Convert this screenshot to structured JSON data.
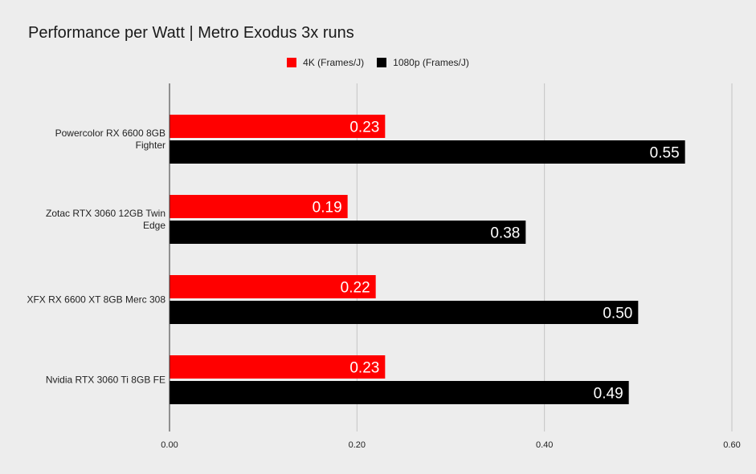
{
  "chart_data": {
    "type": "bar",
    "orientation": "horizontal",
    "title": "Performance per Watt | Metro Exodus 3x runs",
    "categories": [
      [
        "Powercolor RX 6600 8GB",
        "Fighter"
      ],
      [
        "Zotac RTX 3060 12GB Twin",
        "Edge"
      ],
      [
        "XFX RX 6600 XT 8GB Merc 308"
      ],
      [
        "Nvidia RTX 3060 Ti 8GB FE"
      ]
    ],
    "series": [
      {
        "name": "4K (Frames/J)",
        "color": "#ff0000",
        "values": [
          0.23,
          0.19,
          0.22,
          0.23
        ],
        "labels": [
          "0.23",
          "0.19",
          "0.22",
          "0.23"
        ]
      },
      {
        "name": "1080p (Frames/J)",
        "color": "#000000",
        "values": [
          0.55,
          0.38,
          0.5,
          0.49
        ],
        "labels": [
          "0.55",
          "0.38",
          "0.50",
          "0.49"
        ]
      }
    ],
    "xlim": [
      0,
      0.6
    ],
    "ticks": [
      0,
      0.2,
      0.4,
      0.6
    ],
    "tick_labels": [
      "0.00",
      "0.20",
      "0.40",
      "0.60"
    ],
    "grid": true,
    "legend_position": "top-center"
  }
}
